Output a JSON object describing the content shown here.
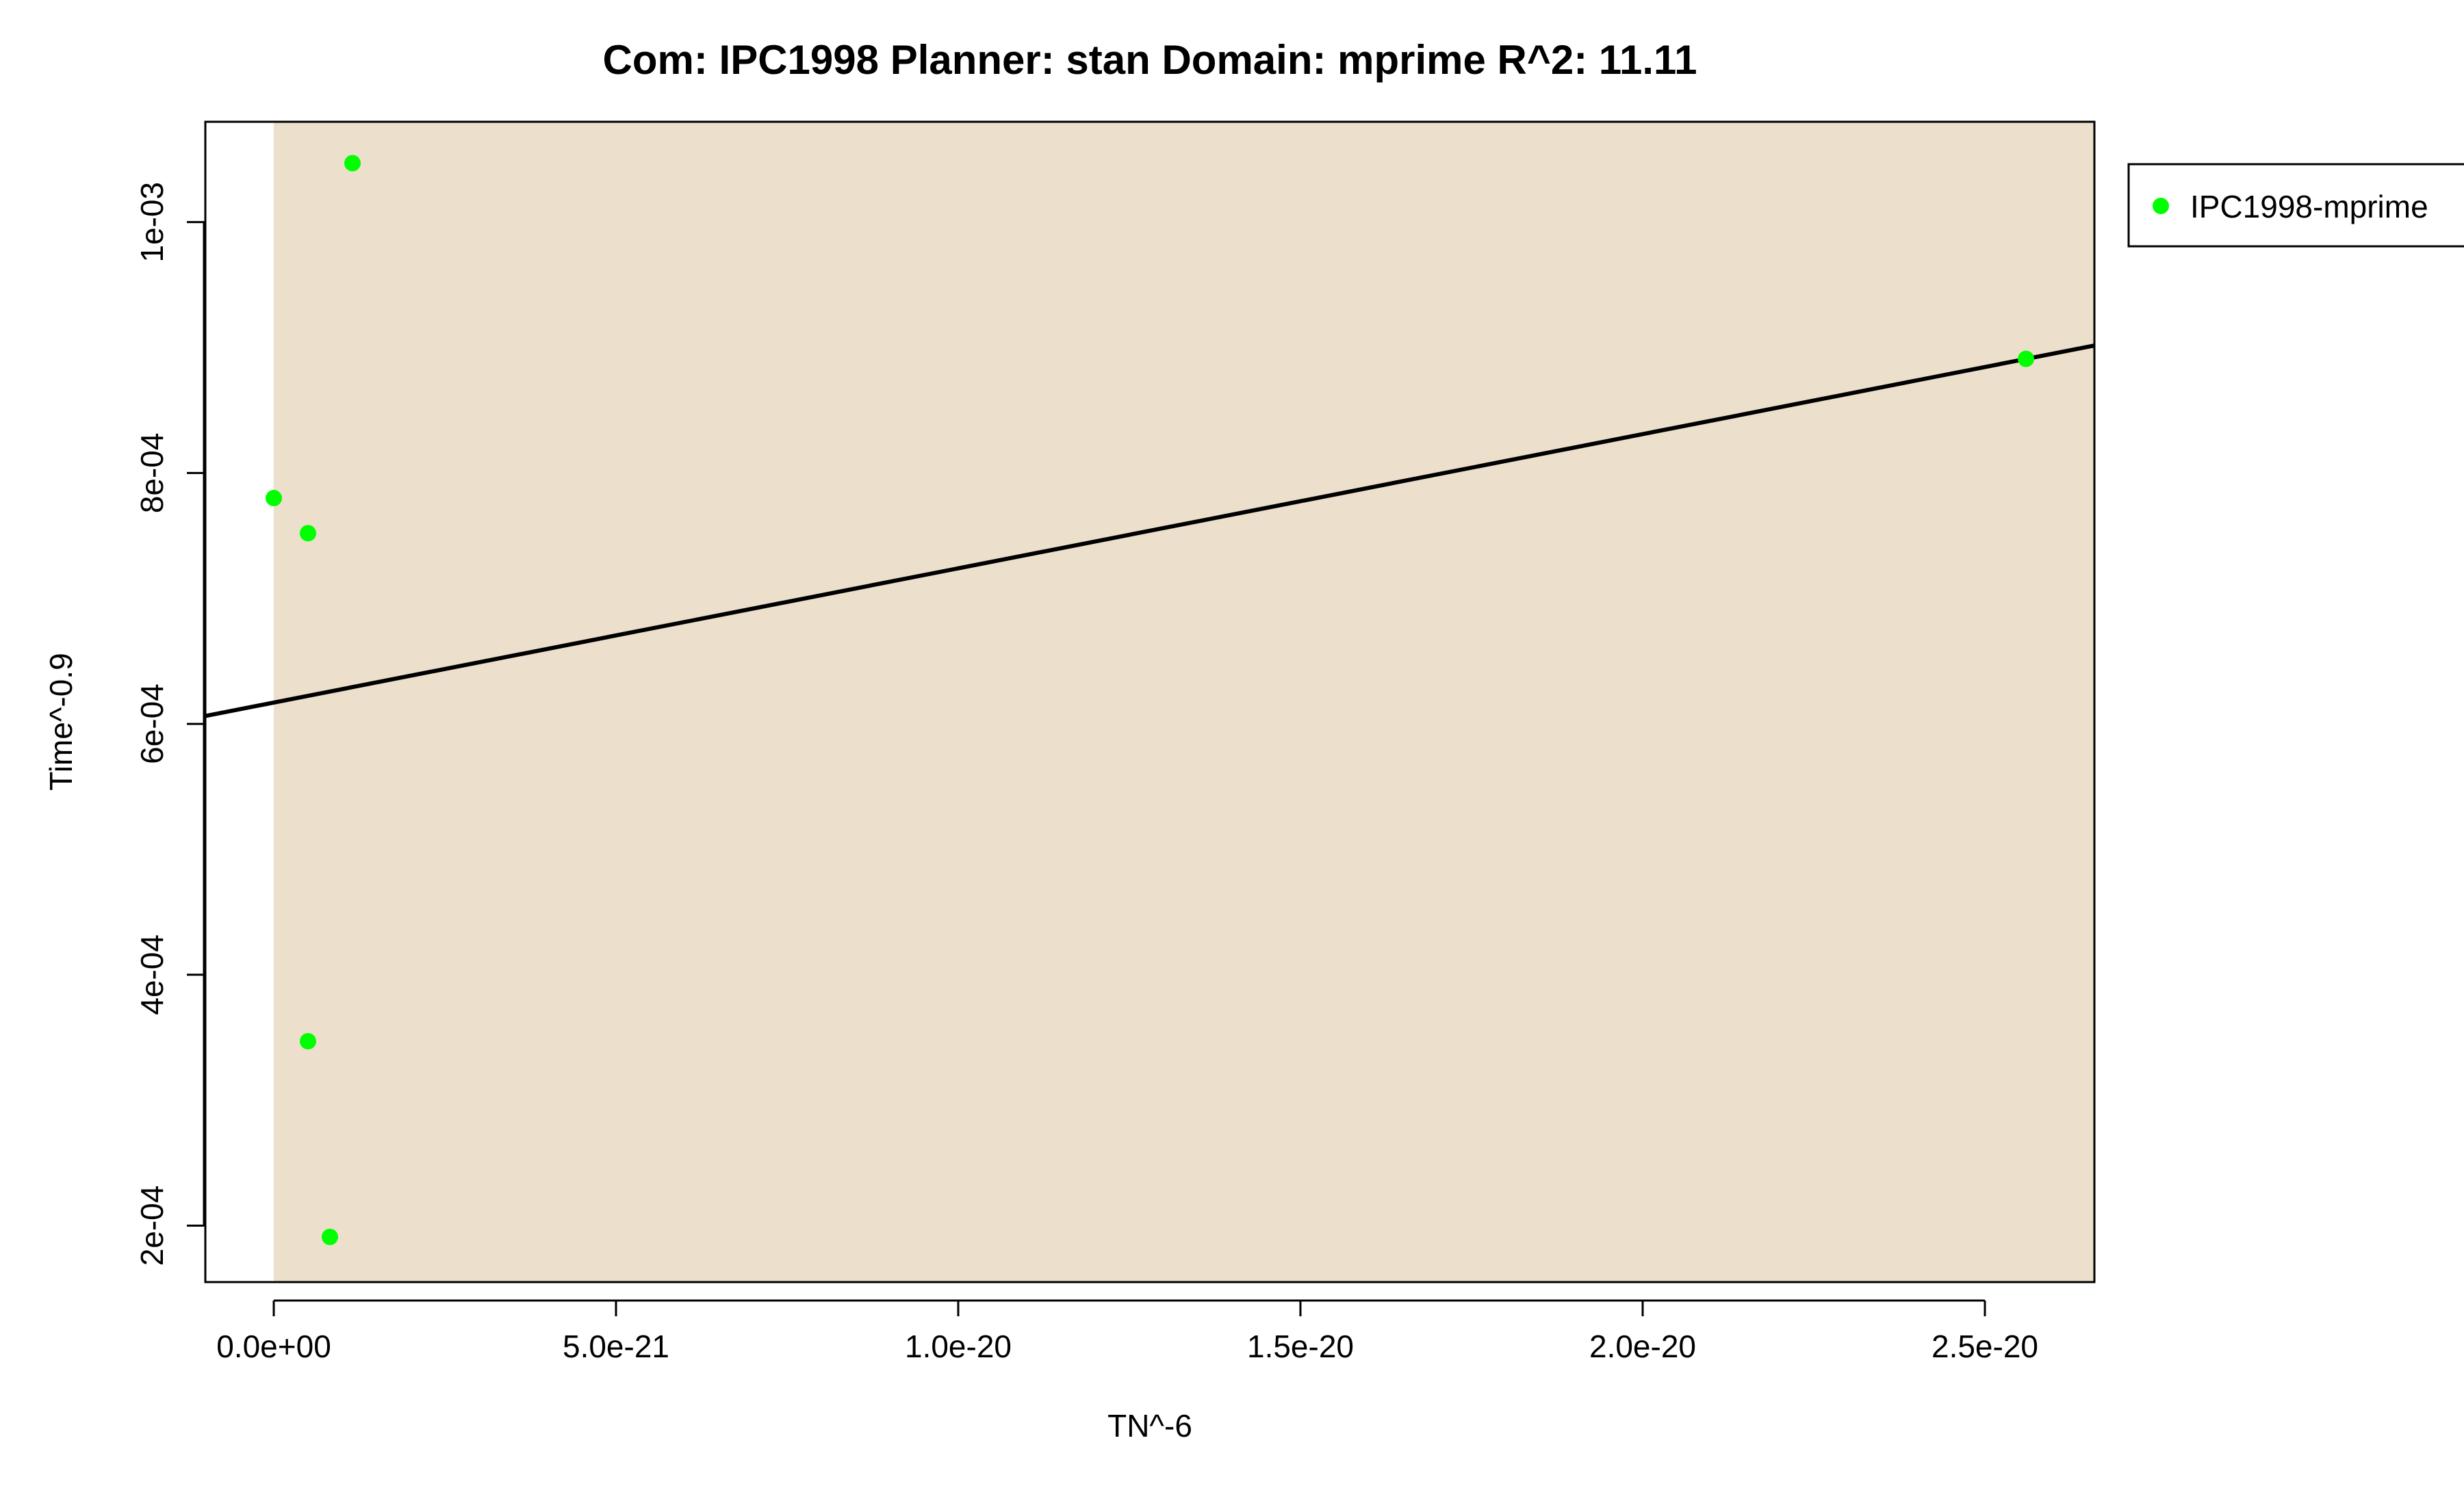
{
  "chart_data": {
    "type": "scatter",
    "title": "Com: IPC1998 Planner: stan Domain: mprime R^2: 11.11",
    "xlabel": "TN^-6",
    "ylabel": "Time^-0.9",
    "xlim": [
      -1e-21,
      2.66e-20
    ],
    "ylim": [
      0.000155,
      0.00108
    ],
    "x_ticks": [
      0,
      5e-21,
      1e-20,
      1.5e-20,
      2e-20,
      2.5e-20
    ],
    "x_tick_labels": [
      "0.0e+00",
      "5.0e-21",
      "1.0e-20",
      "1.5e-20",
      "2.0e-20",
      "2.5e-20"
    ],
    "y_ticks": [
      0.0002,
      0.0004,
      0.0006,
      0.0008,
      0.001
    ],
    "y_tick_labels": [
      "2e-04",
      "4e-04",
      "6e-04",
      "8e-04",
      "1e-03"
    ],
    "shaded_region": {
      "x": [
        0,
        2.66e-20
      ],
      "color": "#ecdfcc"
    },
    "series": [
      {
        "name": "IPC1998-mprime",
        "color": "#00ff00",
        "points": [
          {
            "x": 0.0,
            "y": 0.00078
          },
          {
            "x": 5e-22,
            "y": 0.000752
          },
          {
            "x": 1.15e-21,
            "y": 0.001047
          },
          {
            "x": 5e-22,
            "y": 0.000347
          },
          {
            "x": 8.2e-22,
            "y": 0.000191
          },
          {
            "x": 2.56e-20,
            "y": 0.000891
          }
        ]
      }
    ],
    "fit_line": {
      "color": "#000000",
      "intercept": 0.000617,
      "slope": 1.07e+16
    },
    "legend": {
      "position": "top-right",
      "entries": [
        {
          "label": "IPC1998-mprime",
          "color": "#00ff00"
        }
      ]
    },
    "grid": false
  }
}
